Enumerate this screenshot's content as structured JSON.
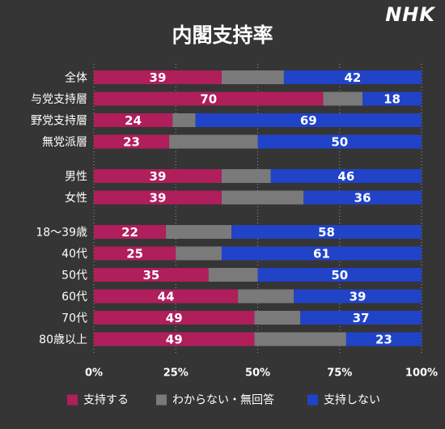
{
  "brand": {
    "logo_text": "NHK"
  },
  "colors": {
    "background": "#353535",
    "support": "#b01e5c",
    "unknown": "#7a7a7a",
    "not_support": "#2143c8",
    "text": "#ffffff"
  },
  "chart_data": {
    "type": "bar",
    "orientation": "horizontal-stacked-100",
    "title": "内閣支持率",
    "xlim": [
      0,
      100
    ],
    "x_ticks": [
      "0%",
      "25%",
      "50%",
      "75%",
      "100%"
    ],
    "grid": true,
    "legend_position": "bottom",
    "categories": [
      "全体",
      "与党支持層",
      "野党支持層",
      "無党派層",
      "男性",
      "女性",
      "18〜39歳",
      "40代",
      "50代",
      "60代",
      "70代",
      "80歳以上"
    ],
    "groups": [
      [
        0,
        1,
        2,
        3
      ],
      [
        4,
        5
      ],
      [
        6,
        7,
        8,
        9,
        10,
        11
      ]
    ],
    "series": [
      {
        "name": "支持する",
        "color": "#b01e5c",
        "labeled": true,
        "values": [
          39,
          70,
          24,
          23,
          39,
          39,
          22,
          25,
          35,
          44,
          49,
          49
        ]
      },
      {
        "name": "わからない・無回答",
        "color": "#7a7a7a",
        "labeled": false,
        "values": [
          19,
          12,
          7,
          27,
          15,
          25,
          20,
          14,
          15,
          17,
          14,
          28
        ]
      },
      {
        "name": "支持しない",
        "color": "#2143c8",
        "labeled": true,
        "values": [
          42,
          18,
          69,
          50,
          46,
          36,
          58,
          61,
          50,
          39,
          37,
          23
        ]
      }
    ]
  }
}
